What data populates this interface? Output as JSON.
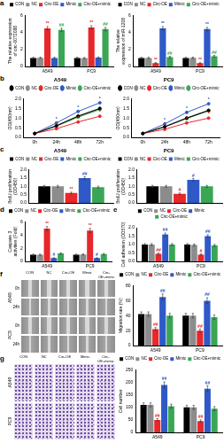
{
  "chart_data": [
    {
      "panel": "a",
      "type": "bar",
      "y_label": "The relative expression of circ-0072088",
      "categories": [
        "A549",
        "PC9"
      ],
      "ylim": [
        0,
        6
      ],
      "yticks": [
        0,
        2,
        4,
        6
      ],
      "grid": false,
      "legend": "top",
      "series": [
        {
          "name": "CON",
          "color": "#000000",
          "values": [
            1.0,
            1.0
          ],
          "errors": [
            0.08,
            0.08
          ]
        },
        {
          "name": "NC",
          "color": "#8c8c8c",
          "values": [
            1.02,
            0.98
          ],
          "errors": [
            0.08,
            0.08
          ]
        },
        {
          "name": "Circ-OE",
          "color": "#e8272a",
          "values": [
            4.5,
            4.6
          ],
          "errors": [
            0.2,
            0.2
          ],
          "marks": [
            "**",
            "**"
          ]
        },
        {
          "name": "Mimic",
          "color": "#2e59c7",
          "values": [
            1.0,
            1.05
          ],
          "errors": [
            0.08,
            0.08
          ]
        },
        {
          "name": "Circ-OE+mimic",
          "color": "#3aa655",
          "values": [
            4.3,
            4.4
          ],
          "errors": [
            0.2,
            0.2
          ],
          "marks": [
            "##",
            "##"
          ]
        }
      ]
    },
    {
      "type": "bar",
      "y_label": "The relative expression of miR-1208",
      "categories": [
        "A549",
        "PC9"
      ],
      "ylim": [
        0,
        6
      ],
      "yticks": [
        0,
        2,
        4,
        6
      ],
      "grid": false,
      "legend": "top",
      "series": [
        {
          "name": "CON",
          "color": "#000000",
          "values": [
            1.0,
            1.0
          ],
          "errors": [
            0.08,
            0.08
          ]
        },
        {
          "name": "NC",
          "color": "#8c8c8c",
          "values": [
            1.0,
            1.02
          ],
          "errors": [
            0.08,
            0.08
          ]
        },
        {
          "name": "Circ-OE",
          "color": "#e8272a",
          "values": [
            0.4,
            0.4
          ],
          "errors": [
            0.05,
            0.05
          ],
          "marks": [
            "**",
            "**"
          ]
        },
        {
          "name": "Mimic",
          "color": "#2e59c7",
          "values": [
            4.5,
            4.4
          ],
          "errors": [
            0.2,
            0.2
          ],
          "marks": [
            "**",
            "**"
          ]
        },
        {
          "name": "Circ-OE+mimic",
          "color": "#3aa655",
          "values": [
            1.1,
            1.2
          ],
          "errors": [
            0.1,
            0.1
          ],
          "marks": [
            "##",
            "##"
          ]
        }
      ]
    },
    {
      "panel": "b",
      "type": "line",
      "title": "A549",
      "y_label": "OD(450nm)",
      "categories": [
        "0h",
        "24h",
        "48h",
        "72h"
      ],
      "ylim": [
        0,
        2
      ],
      "yticks": [
        {
          "value": 0,
          "label": "0.0"
        },
        {
          "value": 0.5,
          "label": "0.5"
        },
        {
          "value": 1,
          "label": "1.0"
        },
        {
          "value": 1.5,
          "label": "1.5"
        },
        {
          "value": 2,
          "label": "2.0"
        }
      ],
      "grid": false,
      "legend": "top",
      "series": [
        {
          "name": "CON",
          "color": "#000000",
          "marker": "circle",
          "line_style": "solid",
          "values": [
            0.2,
            0.6,
            1.1,
            1.5
          ]
        },
        {
          "name": "NC",
          "color": "#8c8c8c",
          "marker": "circle",
          "line_style": "solid",
          "values": [
            0.2,
            0.62,
            1.12,
            1.52
          ]
        },
        {
          "name": "Circ-OE",
          "color": "#e8272a",
          "marker": "circle",
          "line_style": "solid",
          "values": [
            0.2,
            0.45,
            0.8,
            1.1
          ],
          "marks": [
            null,
            "*",
            "*",
            "*"
          ]
        },
        {
          "name": "Mimic",
          "color": "#2e59c7",
          "marker": "circle",
          "line_style": "solid",
          "values": [
            0.2,
            0.75,
            1.35,
            1.8
          ],
          "marks": [
            null,
            "*",
            "*",
            "*"
          ]
        },
        {
          "name": "Circ-OE+mimic",
          "color": "#3aa655",
          "marker": "circle",
          "line_style": "solid",
          "values": [
            0.2,
            0.58,
            1.05,
            1.45
          ]
        }
      ]
    },
    {
      "type": "line",
      "title": "PC9",
      "y_label": "OD(450nm)",
      "categories": [
        "0h",
        "24h",
        "48h",
        "72h"
      ],
      "ylim": [
        0,
        2
      ],
      "yticks": [
        {
          "value": 0,
          "label": "0.0"
        },
        {
          "value": 0.5,
          "label": "0.5"
        },
        {
          "value": 1,
          "label": "1.0"
        },
        {
          "value": 1.5,
          "label": "1.5"
        },
        {
          "value": 2,
          "label": "2.0"
        }
      ],
      "grid": false,
      "legend": "top",
      "series": [
        {
          "name": "CON",
          "color": "#000000",
          "marker": "circle",
          "line_style": "solid",
          "values": [
            0.2,
            0.55,
            1.0,
            1.4
          ]
        },
        {
          "name": "NC",
          "color": "#8c8c8c",
          "marker": "circle",
          "line_style": "solid",
          "values": [
            0.2,
            0.57,
            1.02,
            1.42
          ]
        },
        {
          "name": "Circ-OE",
          "color": "#e8272a",
          "marker": "circle",
          "line_style": "solid",
          "values": [
            0.2,
            0.42,
            0.75,
            1.0
          ],
          "marks": [
            null,
            "*",
            "*",
            "*"
          ]
        },
        {
          "name": "Mimic",
          "color": "#2e59c7",
          "marker": "circle",
          "line_style": "solid",
          "values": [
            0.2,
            0.7,
            1.3,
            1.75
          ],
          "marks": [
            null,
            "*",
            "*",
            "*"
          ]
        },
        {
          "name": "Circ-OE+mimic",
          "color": "#3aa655",
          "marker": "circle",
          "line_style": "solid",
          "values": [
            0.2,
            0.54,
            0.98,
            1.38
          ]
        }
      ]
    },
    {
      "panel": "c",
      "type": "bar",
      "title": "A549",
      "y_label": "BrdU proliferation (OD450)",
      "categories": [
        null
      ],
      "tick_labels": "y",
      "ylim": [
        0,
        2
      ],
      "yticks": [
        {
          "value": 0,
          "label": "0.0"
        },
        {
          "value": 0.5,
          "label": "0.5"
        },
        {
          "value": 1,
          "label": "1.0"
        },
        {
          "value": 1.5,
          "label": "1.5"
        },
        {
          "value": 2,
          "label": "2.0"
        }
      ],
      "grid": false,
      "legend": "top",
      "series": [
        {
          "name": "CON",
          "color": "#000000",
          "values": [
            1.0
          ],
          "errors": [
            0.06
          ]
        },
        {
          "name": "NC",
          "color": "#8c8c8c",
          "values": [
            1.0
          ],
          "errors": [
            0.06
          ]
        },
        {
          "name": "Circ-OE",
          "color": "#e8272a",
          "values": [
            0.6
          ],
          "errors": [
            0.05
          ],
          "marks": [
            "**"
          ]
        },
        {
          "name": "Mimic",
          "color": "#2e59c7",
          "values": [
            1.5
          ],
          "errors": [
            0.08
          ],
          "marks": [
            "##"
          ]
        },
        {
          "name": "Circ-OE+mimic",
          "color": "#3aa655",
          "values": [
            0.95
          ],
          "errors": [
            0.06
          ]
        }
      ]
    },
    {
      "type": "bar",
      "title": "PC9",
      "y_label": "BrdU proliferation (OD450)",
      "categories": [
        null
      ],
      "tick_labels": "y",
      "ylim": [
        0,
        2
      ],
      "yticks": [
        {
          "value": 0,
          "label": "0.0"
        },
        {
          "value": 0.5,
          "label": "0.5"
        },
        {
          "value": 1,
          "label": "1.0"
        },
        {
          "value": 1.5,
          "label": "1.5"
        },
        {
          "value": 2,
          "label": "2.0"
        }
      ],
      "grid": false,
      "legend": "top",
      "series": [
        {
          "name": "CON",
          "color": "#000000",
          "values": [
            1.0
          ],
          "errors": [
            0.06
          ]
        },
        {
          "name": "NC",
          "color": "#8c8c8c",
          "values": [
            1.0
          ],
          "errors": [
            0.06
          ]
        },
        {
          "name": "Circ-OE",
          "color": "#e8272a",
          "values": [
            0.55
          ],
          "errors": [
            0.05
          ],
          "marks": [
            "#"
          ]
        },
        {
          "name": "Mimic",
          "color": "#2e59c7",
          "values": [
            1.4
          ],
          "errors": [
            0.08
          ],
          "marks": [
            "#"
          ]
        },
        {
          "name": "Circ-OE+mimic",
          "color": "#3aa655",
          "values": [
            1.0
          ],
          "errors": [
            0.06
          ]
        }
      ]
    },
    {
      "panel": "d",
      "type": "bar",
      "y_label": "Caspase 3 activities (Fold)",
      "categories": [
        "A549",
        "PC9"
      ],
      "ylim": [
        0,
        6
      ],
      "yticks": [
        0,
        2,
        4,
        6
      ],
      "grid": false,
      "legend": "top",
      "series": [
        {
          "name": "CON",
          "color": "#000000",
          "values": [
            1.0,
            1.0
          ],
          "errors": [
            0.1,
            0.1
          ]
        },
        {
          "name": "NC",
          "color": "#8c8c8c",
          "values": [
            1.0,
            1.05
          ],
          "errors": [
            0.1,
            0.1
          ]
        },
        {
          "name": "Circ-OE",
          "color": "#e8272a",
          "values": [
            5.0,
            4.7
          ],
          "errors": [
            0.3,
            0.3
          ],
          "marks": [
            "**",
            "**"
          ]
        },
        {
          "name": "Mimic",
          "color": "#2e59c7",
          "values": [
            0.5,
            0.5
          ],
          "errors": [
            0.05,
            0.05
          ],
          "marks": [
            "#",
            "#"
          ]
        },
        {
          "name": "Circ-OE+mimic",
          "color": "#3aa655",
          "values": [
            1.2,
            1.1
          ],
          "errors": [
            0.1,
            0.1
          ]
        }
      ]
    },
    {
      "panel": "e",
      "type": "bar",
      "y_label": "Cell adhesion (OD570)",
      "categories": [
        "A549",
        "PC9"
      ],
      "ylim": [
        0,
        2
      ],
      "yticks": [
        {
          "value": 0,
          "label": "0.0"
        },
        {
          "value": 0.5,
          "label": "0.5"
        },
        {
          "value": 1,
          "label": "1.0"
        },
        {
          "value": 1.5,
          "label": "1.5"
        },
        {
          "value": 2,
          "label": "2.0"
        }
      ],
      "grid": false,
      "legend": "top",
      "series": [
        {
          "name": "CON",
          "color": "#000000",
          "values": [
            1.0,
            1.0
          ],
          "errors": [
            0.06,
            0.06
          ]
        },
        {
          "name": "NC",
          "color": "#8c8c8c",
          "values": [
            1.0,
            0.98
          ],
          "errors": [
            0.06,
            0.06
          ]
        },
        {
          "name": "Circ-OE",
          "color": "#e8272a",
          "values": [
            0.45,
            0.4
          ],
          "errors": [
            0.05,
            0.05
          ],
          "marks": [
            "##",
            "#"
          ]
        },
        {
          "name": "Mimic",
          "color": "#2e59c7",
          "values": [
            1.6,
            1.5
          ],
          "errors": [
            0.08,
            0.08
          ],
          "marks": [
            "##",
            "##"
          ]
        },
        {
          "name": "Circ-OE+mimic",
          "color": "#3aa655",
          "values": [
            1.0,
            0.95
          ],
          "errors": [
            0.06,
            0.06
          ]
        }
      ]
    },
    {
      "type": "bar",
      "y_label": "Migration rate (%)",
      "categories": [
        "A549",
        "PC9"
      ],
      "ylim": [
        0,
        80
      ],
      "yticks": [
        0,
        20,
        40,
        60,
        80
      ],
      "grid": false,
      "legend": "top",
      "series": [
        {
          "name": "CON",
          "color": "#000000",
          "values": [
            42,
            40
          ],
          "errors": [
            3,
            3
          ]
        },
        {
          "name": "NC",
          "color": "#8c8c8c",
          "values": [
            42,
            40
          ],
          "errors": [
            3,
            3
          ]
        },
        {
          "name": "Circ-OE",
          "color": "#e8272a",
          "values": [
            22,
            20
          ],
          "errors": [
            2,
            2
          ],
          "marks": [
            "##",
            "##"
          ]
        },
        {
          "name": "Mimic",
          "color": "#2e59c7",
          "values": [
            65,
            60
          ],
          "errors": [
            4,
            4
          ],
          "marks": [
            "##",
            "##"
          ]
        },
        {
          "name": "Circ-OE+mimic",
          "color": "#3aa655",
          "values": [
            40,
            38
          ],
          "errors": [
            3,
            3
          ]
        }
      ]
    },
    {
      "type": "bar",
      "y_label": "Cell number",
      "categories": [
        "A549",
        "PC9"
      ],
      "ylim": [
        0,
        250
      ],
      "yticks": [
        0,
        50,
        100,
        150,
        200,
        250
      ],
      "grid": false,
      "legend": "top",
      "series": [
        {
          "name": "CON",
          "color": "#000000",
          "values": [
            110,
            100
          ],
          "errors": [
            8,
            8
          ]
        },
        {
          "name": "NC",
          "color": "#8c8c8c",
          "values": [
            110,
            100
          ],
          "errors": [
            8,
            8
          ]
        },
        {
          "name": "Circ-OE",
          "color": "#e8272a",
          "values": [
            50,
            45
          ],
          "errors": [
            5,
            5
          ],
          "marks": [
            "##",
            "##"
          ]
        },
        {
          "name": "Mimic",
          "color": "#2e59c7",
          "values": [
            190,
            175
          ],
          "errors": [
            12,
            12
          ],
          "marks": [
            "##",
            "##"
          ]
        },
        {
          "name": "Circ-OE+mimic",
          "color": "#3aa655",
          "values": [
            105,
            95
          ],
          "errors": [
            8,
            8
          ]
        }
      ]
    }
  ],
  "micrographs": [
    {
      "panel": "f",
      "columns": [
        "CON",
        "NC",
        "Circ-OE",
        "Mimic",
        "Circ-OE+mimic"
      ],
      "rows": [
        "A549",
        "PC9"
      ],
      "times": [
        "0h",
        "24h"
      ]
    },
    {
      "panel": "g",
      "columns": [
        "CON",
        "NC",
        "Circ-OE",
        "Mimic",
        "Circ-OE+mimic"
      ],
      "rows": [
        "A549",
        "PC9"
      ]
    }
  ]
}
